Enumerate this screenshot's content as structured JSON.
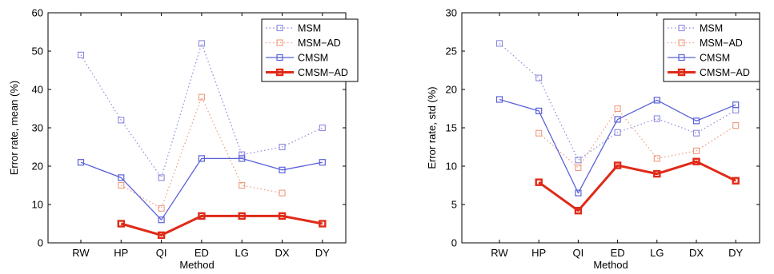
{
  "chart_data": [
    {
      "type": "line",
      "title": "",
      "xlabel": "Method",
      "ylabel": "Error rate, mean (%)",
      "categories": [
        "RW",
        "HP",
        "QI",
        "ED",
        "LG",
        "DX",
        "DY"
      ],
      "ylim": [
        0,
        60
      ],
      "yticks": [
        0,
        10,
        20,
        30,
        40,
        50,
        60
      ],
      "grid": false,
      "legend_position": "top-right",
      "series": [
        {
          "name": "MSM",
          "values": [
            49,
            32,
            17,
            52,
            23,
            25,
            30
          ],
          "color": "#8a8adf",
          "line": "dotted",
          "marker": "square"
        },
        {
          "name": "MSM−AD",
          "values": [
            null,
            15,
            9,
            38,
            15,
            13,
            null
          ],
          "color": "#ee9a7e",
          "line": "dotted",
          "marker": "square"
        },
        {
          "name": "CMSM",
          "values": [
            21,
            17,
            6,
            22,
            22,
            19,
            21
          ],
          "color": "#5b62d8",
          "line": "solid",
          "marker": "square"
        },
        {
          "name": "CMSM−AD",
          "values": [
            null,
            5,
            2,
            7,
            7,
            7,
            5
          ],
          "color": "#e02a18",
          "line": "solid-thick",
          "marker": "square"
        }
      ]
    },
    {
      "type": "line",
      "title": "",
      "xlabel": "Method",
      "ylabel": "Error rate, std (%)",
      "categories": [
        "RW",
        "HP",
        "QI",
        "ED",
        "LG",
        "DX",
        "DY"
      ],
      "ylim": [
        0,
        30
      ],
      "yticks": [
        0,
        5,
        10,
        15,
        20,
        25,
        30
      ],
      "grid": false,
      "legend_position": "top-right",
      "series": [
        {
          "name": "MSM",
          "values": [
            26,
            21.5,
            10.8,
            14.4,
            16.2,
            14.3,
            17.3
          ],
          "color": "#8a8adf",
          "line": "dotted",
          "marker": "square"
        },
        {
          "name": "MSM−AD",
          "values": [
            null,
            14.3,
            9.8,
            17.5,
            11,
            12,
            15.3
          ],
          "color": "#ee9a7e",
          "line": "dotted",
          "marker": "square"
        },
        {
          "name": "CMSM",
          "values": [
            18.7,
            17.2,
            6.5,
            16.1,
            18.6,
            15.9,
            18
          ],
          "color": "#5b62d8",
          "line": "solid",
          "marker": "square"
        },
        {
          "name": "CMSM−AD",
          "values": [
            null,
            7.9,
            4.2,
            10.1,
            9,
            10.6,
            8.1
          ],
          "color": "#e02a18",
          "line": "solid-thick",
          "marker": "square"
        }
      ]
    }
  ]
}
